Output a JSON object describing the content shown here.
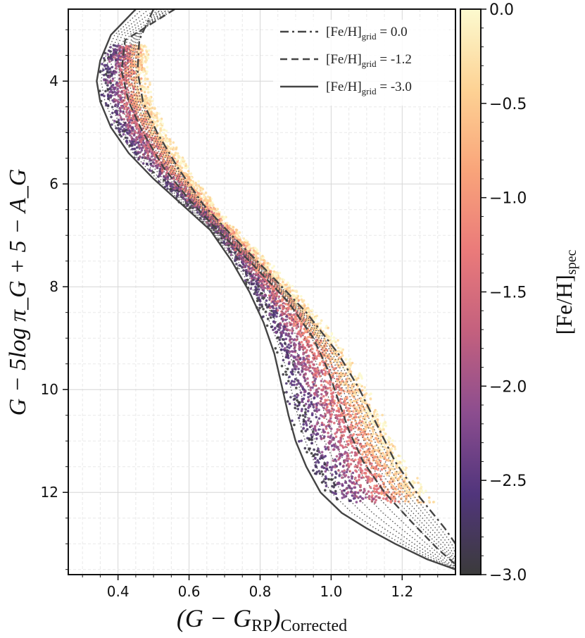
{
  "chart_data": {
    "type": "scatter",
    "xlabel": {
      "main": "(G − G",
      "sub": "RP",
      "close": ")",
      "sub2": "Corrected"
    },
    "ylabel": "G − 5log π_G + 5 − A_G",
    "xlim": [
      0.26,
      1.35
    ],
    "ylim": [
      13.6,
      2.6
    ],
    "y_inverted": true,
    "x_ticks": [
      0.4,
      0.6,
      0.8,
      1.0,
      1.2
    ],
    "x_tick_labels": [
      "0.4",
      "0.6",
      "0.8",
      "1.0",
      "1.2"
    ],
    "y_ticks": [
      4,
      6,
      8,
      10,
      12
    ],
    "y_tick_labels": [
      "4",
      "6",
      "8",
      "10",
      "12"
    ],
    "grid": true,
    "legend_position": "top-right",
    "colorbar": {
      "label_main": "[Fe/H]",
      "label_sub": "spec",
      "range": [
        -3.0,
        0.0
      ],
      "ticks": [
        0.0,
        -0.5,
        -1.0,
        -1.5,
        -2.0,
        -2.5,
        -3.0
      ],
      "tick_labels": [
        "0.0",
        "−0.5",
        "−1.0",
        "−1.5",
        "−2.0",
        "−2.5",
        "−3.0"
      ],
      "colormap": "magma",
      "stops": [
        "#3b3b3b",
        "#51357c",
        "#8c4d8f",
        "#c3607e",
        "#ea7a7a",
        "#f9a47a",
        "#fdd294",
        "#fcfacf"
      ]
    },
    "series": [
      {
        "name": "[Fe/H]_grid = 0.0",
        "style": "dashdot",
        "x": [
          0.5,
          0.46,
          0.455,
          0.47,
          0.51,
          0.57,
          0.64,
          0.72,
          0.82,
          0.93,
          1.02,
          1.08,
          1.13,
          1.18,
          1.25,
          1.32,
          1.36
        ],
        "y": [
          2.6,
          3.2,
          3.8,
          4.4,
          5.0,
          5.7,
          6.4,
          7.0,
          7.7,
          8.5,
          9.3,
          10.0,
          10.7,
          11.4,
          12.1,
          12.7,
          13.1
        ]
      },
      {
        "name": "[Fe/H]_grid = -1.2",
        "style": "dashed",
        "x": [
          0.56,
          0.42,
          0.41,
          0.43,
          0.47,
          0.53,
          0.6,
          0.68,
          0.77,
          0.88,
          0.95,
          0.99,
          1.02,
          1.05,
          1.09,
          1.15,
          1.23,
          1.3,
          1.35
        ],
        "y": [
          2.6,
          3.2,
          3.8,
          4.4,
          5.0,
          5.7,
          6.3,
          6.9,
          7.5,
          8.3,
          9.0,
          9.6,
          10.2,
          10.8,
          11.4,
          12.0,
          12.6,
          13.1,
          13.4
        ]
      },
      {
        "name": "[Fe/H]_grid = -3.0",
        "style": "solid",
        "x": [
          0.45,
          0.38,
          0.35,
          0.34,
          0.35,
          0.38,
          0.43,
          0.5,
          0.58,
          0.66,
          0.72,
          0.77,
          0.81,
          0.84,
          0.86,
          0.88,
          0.9,
          0.93,
          0.97,
          1.03,
          1.1,
          1.18,
          1.27,
          1.35
        ],
        "y": [
          2.6,
          3.1,
          3.6,
          4.0,
          4.4,
          4.9,
          5.4,
          5.9,
          6.4,
          6.9,
          7.5,
          8.1,
          8.7,
          9.3,
          9.9,
          10.5,
          11.0,
          11.5,
          12.0,
          12.4,
          12.7,
          13.0,
          13.3,
          13.5
        ]
      }
    ]
  }
}
